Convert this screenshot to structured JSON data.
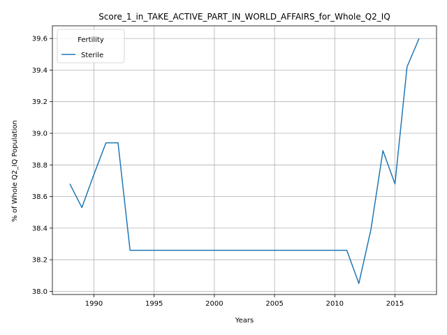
{
  "chart_data": {
    "type": "line",
    "title": "Score_1_in_TAKE_ACTIVE_PART_IN_WORLD_AFFAIRS_for_Whole_Q2_IQ",
    "xlabel": "Years",
    "ylabel": "% of Whole Q2_IQ Population",
    "xlim": [
      1986.55,
      2018.45
    ],
    "ylim": [
      37.98,
      39.68
    ],
    "xticks": [
      1990,
      1995,
      2000,
      2005,
      2010,
      2015
    ],
    "yticks": [
      38.0,
      38.2,
      38.4,
      38.6,
      38.8,
      39.0,
      39.2,
      39.4,
      39.6
    ],
    "grid": true,
    "legend": {
      "title": "Fertility",
      "placement": "top-left"
    },
    "series": [
      {
        "name": "Sterile",
        "color": "#1f77b4",
        "x": [
          1988,
          1989,
          1990,
          1991,
          1992,
          1993,
          1994,
          1995,
          1996,
          1997,
          1998,
          1999,
          2000,
          2001,
          2002,
          2003,
          2004,
          2005,
          2006,
          2007,
          2008,
          2009,
          2010,
          2011,
          2012,
          2013,
          2014,
          2015,
          2016,
          2017
        ],
        "y": [
          38.68,
          38.53,
          38.74,
          38.94,
          38.94,
          38.26,
          38.26,
          38.26,
          38.26,
          38.26,
          38.26,
          38.26,
          38.26,
          38.26,
          38.26,
          38.26,
          38.26,
          38.26,
          38.26,
          38.26,
          38.26,
          38.26,
          38.26,
          38.26,
          38.05,
          38.39,
          38.89,
          38.68,
          39.42,
          39.6
        ]
      }
    ]
  }
}
